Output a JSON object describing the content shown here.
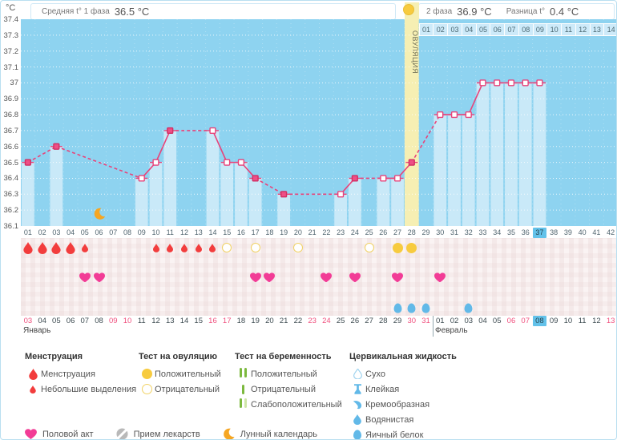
{
  "unit_label": "°C",
  "header": {
    "avg_phase1_label": "Средняя t° 1 фаза",
    "avg_phase1_value": "36.5 °C",
    "phase2_label": "2 фаза",
    "phase2_value": "36.9 °C",
    "diff_label": "Разница t°",
    "diff_value": "0.4 °C"
  },
  "ovulation_band_label": "ОВУЛЯЦИЯ",
  "chart_data": {
    "type": "line",
    "title": "График базальной температуры",
    "y_axis": {
      "min": 36.1,
      "max": 37.4,
      "step": 0.1,
      "unit": "°C",
      "tick_labels": [
        "37.4",
        "37.3",
        "37.2",
        "37.1",
        "37",
        "36.9",
        "36.8",
        "36.7",
        "36.6",
        "36.5",
        "36.4",
        "36.3",
        "36.2",
        "36.1"
      ]
    },
    "x_axis": {
      "total_days": 42
    },
    "points": [
      {
        "day": 1,
        "temp": 36.5,
        "filled": true
      },
      {
        "day": 3,
        "temp": 36.6,
        "filled": true
      },
      {
        "day": 9,
        "temp": 36.4,
        "filled": false
      },
      {
        "day": 10,
        "temp": 36.5,
        "filled": false
      },
      {
        "day": 11,
        "temp": 36.7,
        "filled": true
      },
      {
        "day": 14,
        "temp": 36.7,
        "filled": false
      },
      {
        "day": 15,
        "temp": 36.5,
        "filled": false
      },
      {
        "day": 16,
        "temp": 36.5,
        "filled": false
      },
      {
        "day": 17,
        "temp": 36.4,
        "filled": true
      },
      {
        "day": 19,
        "temp": 36.3,
        "filled": true
      },
      {
        "day": 23,
        "temp": 36.3,
        "filled": false
      },
      {
        "day": 24,
        "temp": 36.4,
        "filled": true
      },
      {
        "day": 26,
        "temp": 36.4,
        "filled": false
      },
      {
        "day": 27,
        "temp": 36.4,
        "filled": false
      },
      {
        "day": 28,
        "temp": 36.5,
        "filled": true
      },
      {
        "day": 30,
        "temp": 36.8,
        "filled": false
      },
      {
        "day": 31,
        "temp": 36.8,
        "filled": false
      },
      {
        "day": 32,
        "temp": 36.8,
        "filled": false
      },
      {
        "day": 33,
        "temp": 37.0,
        "filled": false
      },
      {
        "day": 34,
        "temp": 37.0,
        "filled": false
      },
      {
        "day": 35,
        "temp": 37.0,
        "filled": false
      },
      {
        "day": 36,
        "temp": 37.0,
        "filled": false
      },
      {
        "day": 37,
        "temp": 37.0,
        "filled": false
      }
    ],
    "ovulation_day": 28,
    "current_day": 37,
    "dpo_labels": [
      "01",
      "02",
      "03",
      "04",
      "05",
      "06",
      "07",
      "08",
      "09",
      "10",
      "11",
      "12",
      "13",
      "14"
    ],
    "moon_day": 6,
    "rows": {
      "menstruation_heavy_days": [
        1,
        2,
        3,
        4
      ],
      "menstruation_light_days": [
        5,
        10,
        11,
        12,
        13,
        14
      ],
      "ovulation_test_negative_days": [
        15,
        17,
        20,
        25
      ],
      "ovulation_test_positive_days": [
        27,
        28
      ],
      "intercourse_days": [
        5,
        6,
        17,
        18,
        22,
        24,
        27,
        30
      ],
      "egg_white_fluid_days": [
        27,
        28,
        29,
        32
      ]
    }
  },
  "calendar": {
    "dates": [
      "03",
      "04",
      "05",
      "06",
      "07",
      "08",
      "09",
      "10",
      "11",
      "12",
      "13",
      "14",
      "15",
      "16",
      "17",
      "18",
      "19",
      "20",
      "21",
      "22",
      "23",
      "24",
      "25",
      "26",
      "27",
      "28",
      "29",
      "30",
      "31",
      "01",
      "02",
      "03",
      "04",
      "05",
      "06",
      "07",
      "08",
      "09",
      "10",
      "11",
      "12",
      "13"
    ],
    "red_days": [
      1,
      7,
      8,
      14,
      15,
      21,
      22,
      28,
      29,
      35,
      36,
      42
    ],
    "highlight_day": 37,
    "month_split_after_day": 29,
    "months": [
      "Январь",
      "Февраль"
    ]
  },
  "legend": {
    "menstruation": {
      "title": "Менструация",
      "items": [
        {
          "label": "Менструация"
        },
        {
          "label": "Небольшие выделения"
        }
      ]
    },
    "ovulation_test": {
      "title": "Тест на овуляцию",
      "items": [
        {
          "label": "Положительный"
        },
        {
          "label": "Отрицательный"
        }
      ]
    },
    "pregnancy_test": {
      "title": "Тест на беременность",
      "items": [
        {
          "label": "Положительный"
        },
        {
          "label": "Отрицательный"
        },
        {
          "label": "Слабоположительный"
        }
      ]
    },
    "cervical_fluid": {
      "title": "Цервикальная жидкость",
      "items": [
        {
          "label": "Сухо"
        },
        {
          "label": "Клейкая"
        },
        {
          "label": "Кремообразная"
        },
        {
          "label": "Водянистая"
        },
        {
          "label": "Яичный белок"
        }
      ]
    },
    "extras": [
      {
        "label": "Половой акт"
      },
      {
        "label": "Прием лекарств"
      },
      {
        "label": "Лунный календарь"
      }
    ]
  },
  "colors": {
    "plot_bg": "#8ed3f0",
    "measured_bar": "#c9e9f8",
    "temp_line": "#e8437a",
    "marker_fill": "#ee4f86",
    "ovulation_band": "#f6efb3",
    "test_positive": "#f7cb3f",
    "menstruation": "#f23d3d",
    "intercourse": "#f23c96",
    "cervical_fluid": "#62b9e8",
    "day_highlight": "#63c2ea",
    "weekend_date": "#f0507e",
    "pregnancy_positive": "#7cb93e",
    "pregnancy_weak": "#cfe6a8",
    "moon": "#f5a623",
    "medication": "#b9b9b9"
  }
}
